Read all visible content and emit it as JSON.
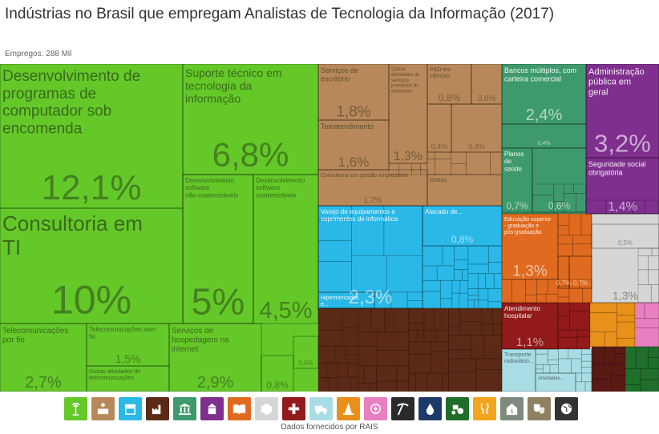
{
  "title": "Indústrias no Brasil que empregam Analistas de Tecnologia da Informação (2017)",
  "subtitle": "Empregos: 288 Mil",
  "footer": "Dados fornecidos por RAIS",
  "chart_data": {
    "type": "treemap",
    "tiles": [
      {
        "label": "Desenvolvimento de programas de computador sob encomenda",
        "value": "12,1%",
        "color": "#64c829"
      },
      {
        "label": "Consultoria em TI",
        "value": "10%",
        "color": "#64c829"
      },
      {
        "label": "Suporte técnico em tecnologia da informação",
        "value": "6,8%",
        "color": "#64c829"
      },
      {
        "label": "Desenvolvimento software não-customizáveis",
        "value": "5%",
        "color": "#64c829"
      },
      {
        "label": "Desenvolvimento software customizáveis",
        "value": "4,5%",
        "color": "#64c829"
      },
      {
        "label": "Telecomunicações por fio",
        "value": "2,7%",
        "color": "#64c829"
      },
      {
        "label": "Telecomunicações sem fio",
        "value": "1,5%",
        "color": "#64c829"
      },
      {
        "label": "Outras atividades de telecomunicações",
        "value": "",
        "color": "#64c829"
      },
      {
        "label": "Serviços de hospedagem na internet",
        "value": "2,9%",
        "color": "#64c829"
      },
      {
        "label": "",
        "value": "0,8%",
        "color": "#64c829"
      },
      {
        "label": "",
        "value": "0,5%",
        "color": "#64c829"
      },
      {
        "label": "Serviços de escritório",
        "value": "1,8%",
        "color": "#b8885a"
      },
      {
        "label": "Outras atividades de serviços prestados às empresas",
        "value": "1,3%",
        "color": "#b8885a"
      },
      {
        "label": "P&D em ciências",
        "value": "0,8%",
        "color": "#b8885a"
      },
      {
        "label": "",
        "value": "0,8%",
        "color": "#b8885a"
      },
      {
        "label": "Teleatendimento",
        "value": "1,6%",
        "color": "#b8885a"
      },
      {
        "label": "",
        "value": "0,4%",
        "color": "#b8885a"
      },
      {
        "label": "",
        "value": "0,4%",
        "color": "#b8885a"
      },
      {
        "label": "Consultoria em gestão empresarial",
        "value": "1,7%",
        "color": "#b8885a"
      },
      {
        "label": "Outras...",
        "value": "",
        "color": "#b8885a"
      },
      {
        "label": "Bancos múltiplos, com carteira comercial",
        "value": "2,4%",
        "color": "#3e9a6d"
      },
      {
        "label": "",
        "value": "0,4%",
        "color": "#3e9a6d"
      },
      {
        "label": "Planos de saúde",
        "value": "0,7%",
        "color": "#3e9a6d"
      },
      {
        "label": "",
        "value": "0,6%",
        "color": "#3e9a6d"
      },
      {
        "label": "Administração pública em geral",
        "value": "3,2%",
        "color": "#7f2f8e"
      },
      {
        "label": "Seguridade social obrigatória",
        "value": "1,4%",
        "color": "#7f2f8e"
      },
      {
        "label": "Varejo de equipamentos e suprimentos de informática",
        "value": "2,3%",
        "color": "#29b8e8"
      },
      {
        "label": "Atacado de...",
        "value": "0,8%",
        "color": "#29b8e8"
      },
      {
        "label": "Hipermercados e...",
        "value": "",
        "color": "#29b8e8"
      },
      {
        "label": "Educação superior - graduação e pós-graduação",
        "value": "1,3%",
        "color": "#e06a1f"
      },
      {
        "label": "",
        "value": "0,7%",
        "color": "#e06a1f"
      },
      {
        "label": "",
        "value": "0,7%",
        "color": "#e06a1f"
      },
      {
        "label": "",
        "value": "1,3%",
        "color": "#d6d6d6"
      },
      {
        "label": "",
        "value": "0,5%",
        "color": "#d6d6d6"
      },
      {
        "label": "Atendimento hospitalar",
        "value": "1,1%",
        "color": "#921a1a"
      },
      {
        "label": "Transporte rodoviário...",
        "value": "",
        "color": "#a9dde6"
      },
      {
        "label": "Atividades...",
        "value": "",
        "color": "#a9dde6"
      }
    ]
  },
  "icons": [
    {
      "name": "antenna-icon",
      "color": "#64c829"
    },
    {
      "name": "reception-icon",
      "color": "#b8885a"
    },
    {
      "name": "store-icon",
      "color": "#29b8e8"
    },
    {
      "name": "factory-icon",
      "color": "#5b2a16"
    },
    {
      "name": "bank-icon",
      "color": "#3e9a6d"
    },
    {
      "name": "government-icon",
      "color": "#7f2f8e"
    },
    {
      "name": "book-icon",
      "color": "#e06a1f"
    },
    {
      "name": "box-icon",
      "color": "#d6d6d6"
    },
    {
      "name": "medical-cross-icon",
      "color": "#921a1a"
    },
    {
      "name": "truck-icon",
      "color": "#a9dde6"
    },
    {
      "name": "cone-icon",
      "color": "#e8901a"
    },
    {
      "name": "energy-icon",
      "color": "#e87fc0"
    },
    {
      "name": "pickaxe-icon",
      "color": "#2a2a2a"
    },
    {
      "name": "oil-drop-icon",
      "color": "#1e3a6b"
    },
    {
      "name": "tractor-icon",
      "color": "#1f6e2a"
    },
    {
      "name": "fork-knife-icon",
      "color": "#f2a51f"
    },
    {
      "name": "money-icon",
      "color": "#7f8a7f"
    },
    {
      "name": "masks-icon",
      "color": "#8f8060"
    },
    {
      "name": "globe-icon",
      "color": "#333333"
    }
  ]
}
